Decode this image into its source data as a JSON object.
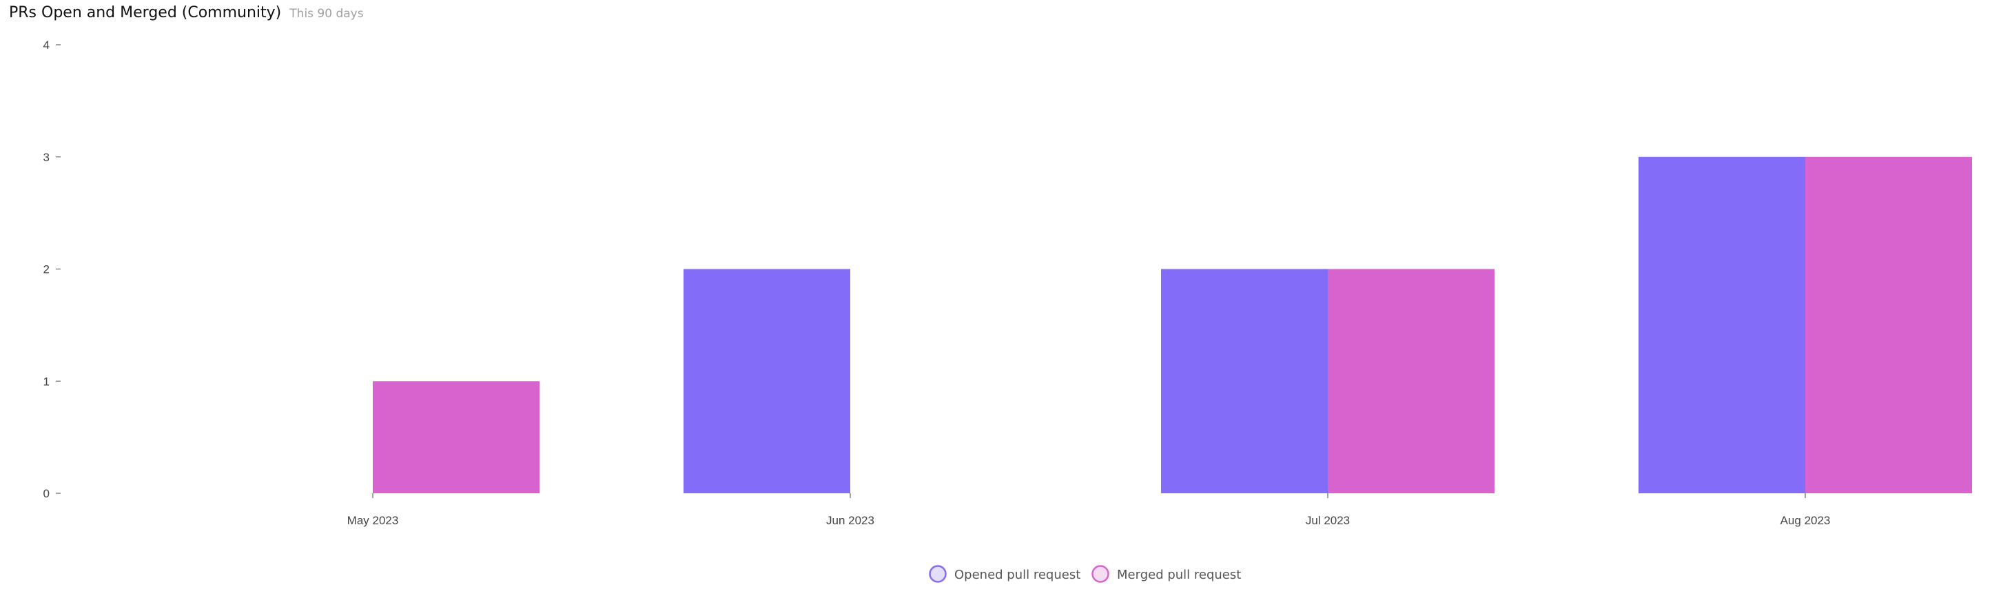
{
  "header": {
    "title": "PRs Open and Merged (Community)",
    "subtitle": "This 90 days"
  },
  "colors": {
    "opened": "#836cf8",
    "merged": "#d763cf",
    "opened_legend_fill": "#e4defc",
    "merged_legend_fill": "#f6dcf3"
  },
  "chart_data": {
    "type": "bar",
    "categories": [
      "May 2023",
      "Jun 2023",
      "Jul 2023",
      "Aug 2023"
    ],
    "series": [
      {
        "name": "Opened pull request",
        "values": [
          0,
          2,
          2,
          3
        ]
      },
      {
        "name": "Merged pull request",
        "values": [
          1,
          0,
          2,
          3
        ]
      }
    ],
    "yticks": [
      0,
      1,
      2,
      3,
      4
    ],
    "ylim": [
      0,
      4
    ],
    "title": "PRs Open and Merged (Community)",
    "xlabel": "",
    "ylabel": "",
    "grid": false,
    "legend": "bottom-center"
  }
}
